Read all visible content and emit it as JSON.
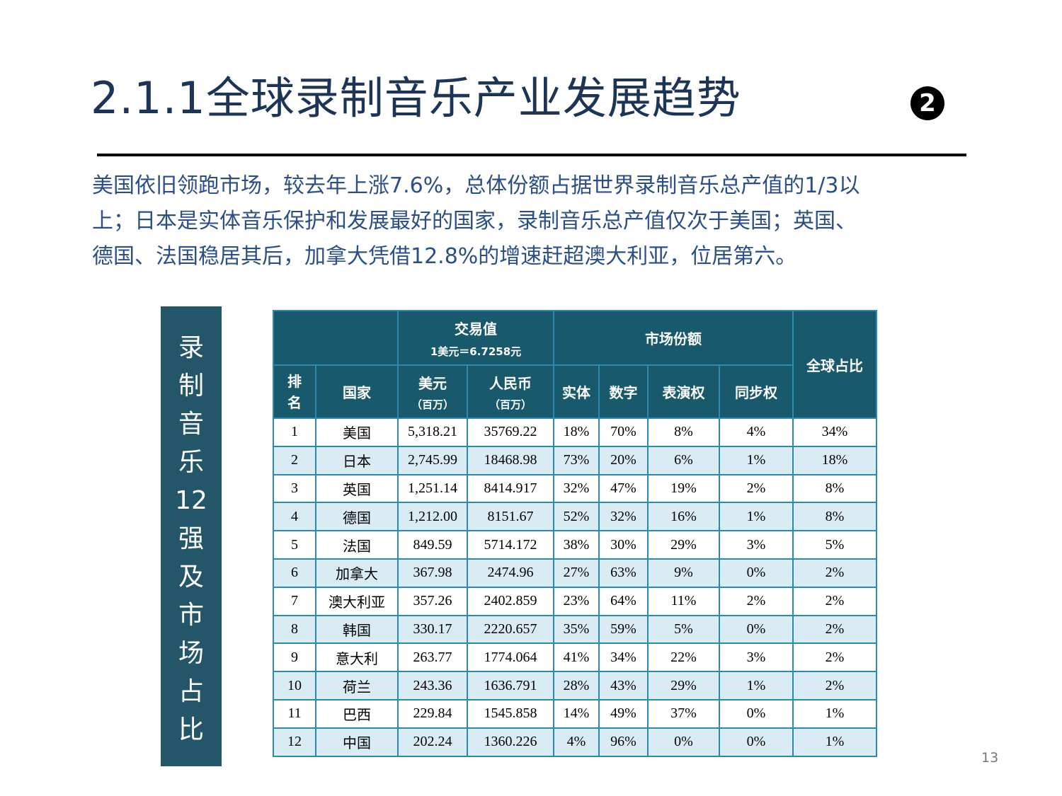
{
  "header": {
    "title": "2.1.1全球录制音乐产业发展趋势",
    "badge": "2"
  },
  "paragraph_lines": [
    "美国依旧领跑市场，较去年上涨7.6%，总体份额占据世界录制音乐总产值的1/3以",
    "上；日本是实体音乐保护和发展最好的国家，录制音乐总产值仅次于美国；英国、",
    "德国、法国稳居其后，加拿大凭借12.8%的增速赶超澳大利亚，位居第六。"
  ],
  "side_label": [
    "录",
    "制",
    "音",
    "乐",
    "12",
    "强",
    "及",
    "市",
    "场",
    "占",
    "比"
  ],
  "table": {
    "group_headers": {
      "trade": "交易值",
      "rate": "1美元＝6.7258元",
      "share": "市场份额",
      "global": "全球占比"
    },
    "columns": [
      {
        "label": "排名"
      },
      {
        "label": "国家"
      },
      {
        "label": "美元",
        "unit": "（百万）"
      },
      {
        "label": "人民币",
        "unit": "（百万）"
      },
      {
        "label": "实体"
      },
      {
        "label": "数字"
      },
      {
        "label": "表演权"
      },
      {
        "label": "同步权"
      }
    ],
    "rows": [
      [
        "1",
        "美国",
        "5,318.21",
        "35769.22",
        "18%",
        "70%",
        "8%",
        "4%",
        "34%"
      ],
      [
        "2",
        "日本",
        "2,745.99",
        "18468.98",
        "73%",
        "20%",
        "6%",
        "1%",
        "18%"
      ],
      [
        "3",
        "英国",
        "1,251.14",
        "8414.917",
        "32%",
        "47%",
        "19%",
        "2%",
        "8%"
      ],
      [
        "4",
        "德国",
        "1,212.00",
        "8151.67",
        "52%",
        "32%",
        "16%",
        "1%",
        "8%"
      ],
      [
        "5",
        "法国",
        "849.59",
        "5714.172",
        "38%",
        "30%",
        "29%",
        "3%",
        "5%"
      ],
      [
        "6",
        "加拿大",
        "367.98",
        "2474.96",
        "27%",
        "63%",
        "9%",
        "0%",
        "2%"
      ],
      [
        "7",
        "澳大利亚",
        "357.26",
        "2402.859",
        "23%",
        "64%",
        "11%",
        "2%",
        "2%"
      ],
      [
        "8",
        "韩国",
        "330.17",
        "2220.657",
        "35%",
        "59%",
        "5%",
        "0%",
        "2%"
      ],
      [
        "9",
        "意大利",
        "263.77",
        "1774.064",
        "41%",
        "34%",
        "22%",
        "3%",
        "2%"
      ],
      [
        "10",
        "荷兰",
        "243.36",
        "1636.791",
        "28%",
        "43%",
        "29%",
        "1%",
        "2%"
      ],
      [
        "11",
        "巴西",
        "229.84",
        "1545.858",
        "14%",
        "49%",
        "37%",
        "0%",
        "1%"
      ],
      [
        "12",
        "中国",
        "202.24",
        "1360.226",
        "4%",
        "96%",
        "0%",
        "0%",
        "1%"
      ]
    ]
  },
  "page_number": "13"
}
